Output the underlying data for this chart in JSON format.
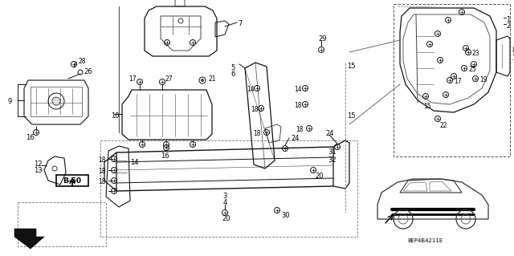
{
  "background_color": "#ffffff",
  "figure_width": 6.4,
  "figure_height": 3.19,
  "dpi": 100,
  "line_color": "#1a1a1a",
  "text_color": "#111111",
  "gray": "#888888",
  "darkgray": "#444444"
}
